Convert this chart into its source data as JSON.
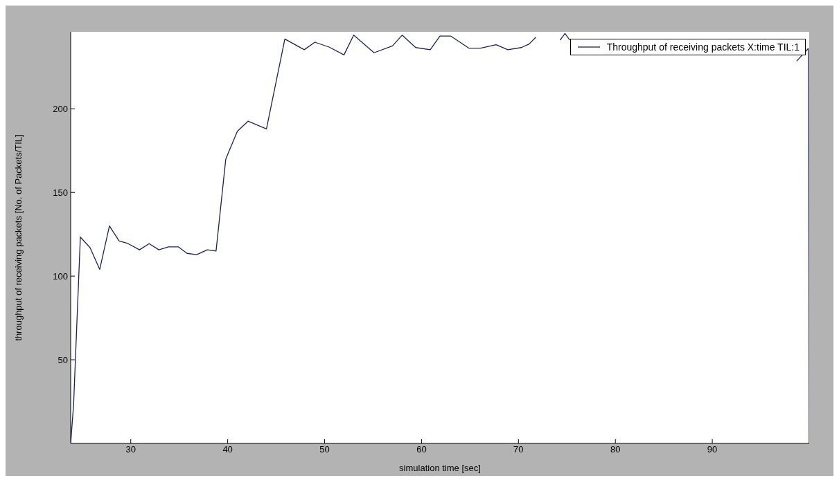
{
  "chart_data": {
    "type": "line",
    "xlabel": "simulation time [sec]",
    "ylabel": "throughput of receiving packets [No. of Packets/TIL]",
    "xlim": [
      23.8,
      100
    ],
    "ylim": [
      0,
      246
    ],
    "xticks": [
      30,
      40,
      50,
      60,
      70,
      80,
      90
    ],
    "yticks": [
      50,
      100,
      150,
      200
    ],
    "grid": false,
    "legend": "top right",
    "marker": "none",
    "line_style": "solid",
    "series": [
      {
        "name": "Throughput of receiving packets X:time TIL:1",
        "color": "#1f1f5c",
        "x": [
          23.8,
          24.1,
          24.8,
          25.8,
          26.8,
          27.8,
          28.8,
          29.7,
          30.9,
          31.9,
          32.9,
          33.9,
          34.9,
          35.8,
          36.8,
          37.9,
          38.8,
          39.8,
          40.0,
          41.0,
          42.1,
          44.0,
          45.9,
          47.9,
          49.0,
          50.5,
          52.0,
          53.0,
          55.1,
          57.0,
          58.0,
          59.4,
          60.9,
          61.9,
          63.0,
          64.9,
          66.1,
          67.7,
          68.9,
          70.3,
          71.1,
          71.8,
          72.3,
          74.3,
          74.8,
          75.3,
          75.8,
          98.4,
          98.7,
          99.9,
          99.95,
          100
        ],
        "values": [
          0,
          23,
          123.3,
          117,
          104,
          130,
          121,
          119.5,
          115.7,
          119.4,
          115.7,
          117.5,
          117.5,
          113.6,
          112.8,
          115.7,
          115,
          169.8,
          172.7,
          186.6,
          192.6,
          188,
          241.7,
          235.3,
          239.8,
          236.8,
          232.2,
          244,
          233.5,
          237.6,
          244,
          236.6,
          235.3,
          243.5,
          243.5,
          236.2,
          236.2,
          238.3,
          235.3,
          236.6,
          238.7,
          242.8,
          null,
          241,
          245,
          241,
          null,
          null,
          228.5,
          236,
          190,
          0
        ]
      }
    ]
  }
}
